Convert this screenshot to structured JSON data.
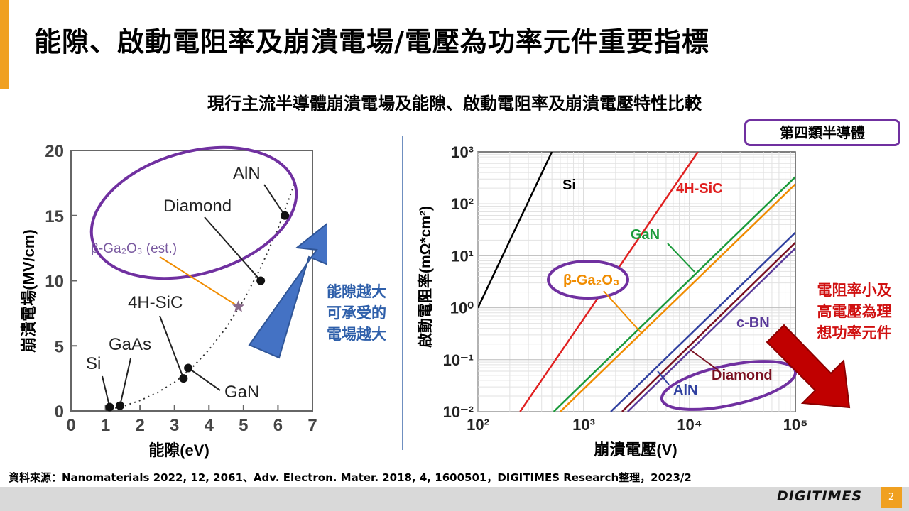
{
  "title": "能隙、啟動電阻率及崩潰電場/電壓為功率元件重要指標",
  "subtitle": "現行主流半導體崩潰電場及能隙、啟動電阻率及崩潰電壓特性比較",
  "badge": "第四類半導體",
  "note_left": [
    "能隙越大",
    "可承受的",
    "電場越大"
  ],
  "note_right": [
    "電阻率小及",
    "高電壓為理",
    "想功率元件"
  ],
  "source": "資料來源：Nanomaterials 2022, 12, 2061、Adv. Electron. Mater. 2018, 4, 1600501，DIGITIMES Research整理，2023/2",
  "footer": {
    "logo": "DIGITIMES",
    "page": "2"
  },
  "colors": {
    "accent": "#f0a020",
    "purple": "#7030a0",
    "blue_arrow": "#4472c4",
    "red_arrow": "#c00000"
  },
  "chart_data": [
    {
      "type": "scatter",
      "xlabel": "能隙(eV)",
      "ylabel": "崩潰電場(MV/cm)",
      "xlim": [
        0,
        7
      ],
      "ylim": [
        0,
        20
      ],
      "x_ticks": [
        "0",
        "1",
        "2",
        "3",
        "4",
        "5",
        "6",
        "7"
      ],
      "y_ticks": [
        "0",
        "5",
        "10",
        "15",
        "20"
      ],
      "points": [
        {
          "name": "Si",
          "x": 1.12,
          "y": 0.3
        },
        {
          "name": "GaAs",
          "x": 1.42,
          "y": 0.4
        },
        {
          "name": "4H-SiC",
          "x": 3.26,
          "y": 2.5
        },
        {
          "name": "GaN",
          "x": 3.4,
          "y": 3.3
        },
        {
          "name": "β-Ga₂O₃ (est.)",
          "x": 4.85,
          "y": 8.0,
          "marker": "star"
        },
        {
          "name": "Diamond",
          "x": 5.5,
          "y": 10.0
        },
        {
          "name": "AlN",
          "x": 6.2,
          "y": 15.0
        }
      ],
      "trend_x": [
        1.0,
        1.5,
        2.0,
        2.5,
        3.0,
        3.5,
        4.0,
        4.5,
        5.0,
        5.5,
        6.0,
        6.5
      ],
      "trend_y": [
        0.05,
        0.35,
        0.8,
        1.4,
        2.2,
        3.3,
        4.7,
        6.4,
        8.5,
        11.0,
        14.0,
        17.6
      ],
      "legend_labels": [
        "Si",
        "GaAs",
        "4H-SiC",
        "GaN",
        "β-Ga₂O₃ (est.)",
        "Diamond",
        "AlN"
      ]
    },
    {
      "type": "line",
      "xscale": "log",
      "yscale": "log",
      "xlabel": "崩潰電壓(V)",
      "ylabel": "啟動電阻率(mΩ*cm²)",
      "xlim": [
        100,
        100000
      ],
      "ylim": [
        0.01,
        1000
      ],
      "x_ticks": [
        "10²",
        "10³",
        "10⁴",
        "10⁵"
      ],
      "y_ticks": [
        "10⁻²",
        "10⁻¹",
        "10⁰",
        "10¹",
        "10²",
        "10³"
      ],
      "series": [
        {
          "name": "Si",
          "color": "#000000",
          "x": [
            100,
            500
          ],
          "y": [
            1.0,
            1000
          ]
        },
        {
          "name": "4H-SiC",
          "color": "#e02020",
          "x": [
            250,
            12000
          ],
          "y": [
            0.01,
            1000
          ]
        },
        {
          "name": "GaN",
          "color": "#1a9a3a",
          "x": [
            520,
            100000
          ],
          "y": [
            0.01,
            330
          ]
        },
        {
          "name": "β-Ga₂O₃",
          "color": "#f08c00",
          "x": [
            600,
            100000
          ],
          "y": [
            0.01,
            240
          ]
        },
        {
          "name": "AlN",
          "color": "#3040a0",
          "x": [
            1800,
            100000
          ],
          "y": [
            0.01,
            28
          ]
        },
        {
          "name": "Diamond",
          "color": "#7a1020",
          "x": [
            2300,
            100000
          ],
          "y": [
            0.01,
            18
          ]
        },
        {
          "name": "c-BN",
          "color": "#5a3a9a",
          "x": [
            2600,
            100000
          ],
          "y": [
            0.01,
            14
          ]
        }
      ],
      "labels": [
        "Si",
        "4H-SiC",
        "GaN",
        "β-Ga₂O₃",
        "c-BN",
        "Diamond",
        "AlN"
      ]
    }
  ]
}
